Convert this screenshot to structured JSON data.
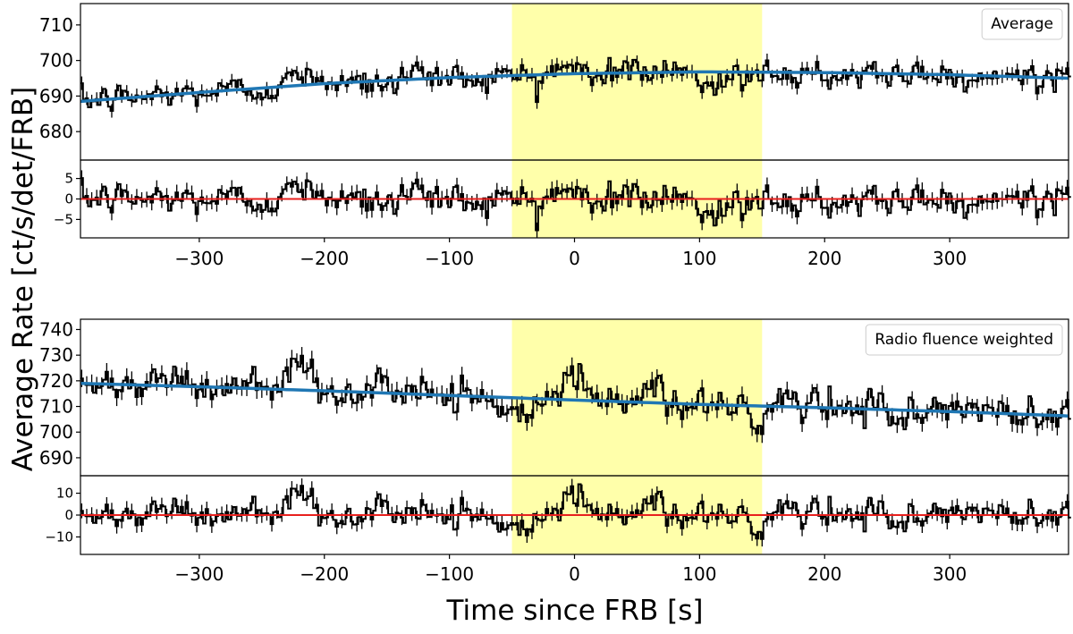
{
  "figure": {
    "ylabel": "Average Rate [ct/s/det/FRB]",
    "xlabel": "Time since FRB [s]"
  },
  "chart_data": [
    {
      "type": "line",
      "panel": "top",
      "legend": "Average",
      "legend_position": "top-right",
      "xlim": [
        -395,
        395
      ],
      "ylim": [
        672,
        716
      ],
      "xticks": [
        -300,
        -200,
        -100,
        0,
        100,
        200,
        300
      ],
      "yticks": [
        680,
        690,
        700,
        710
      ],
      "xtick_labels": [
        "−300",
        "−200",
        "−100",
        "0",
        "100",
        "200",
        "300"
      ],
      "ytick_labels": [
        "680",
        "690",
        "700",
        "710"
      ],
      "highlight_span": [
        -50,
        150
      ],
      "bin_width": 2,
      "noise_sigma": 2.3,
      "errorbar": 1.9,
      "fit": {
        "x": [
          -395,
          -300,
          -200,
          -100,
          0,
          100,
          200,
          300,
          395
        ],
        "y": [
          688.5,
          691.0,
          693.5,
          695.2,
          696.3,
          696.8,
          696.6,
          696.0,
          695.0
        ]
      },
      "features": [
        {
          "x": [
            -228,
            -210
          ],
          "delta": 5
        },
        {
          "x": [
            -130,
            -100
          ],
          "delta": 2
        },
        {
          "x": [
            -20,
            10
          ],
          "delta": 2.5
        },
        {
          "x": [
            95,
            125
          ],
          "delta": -3
        },
        {
          "x": [
            130,
            150
          ],
          "delta": -1.5
        },
        {
          "x": [
            345,
            360
          ],
          "delta": 2.5
        }
      ],
      "residuals": {
        "ylim": [
          -9.5,
          9.5
        ],
        "yticks": [
          -5,
          0,
          5
        ],
        "ytick_labels": [
          "−5",
          "0",
          "5"
        ],
        "zero_line": 0
      }
    },
    {
      "type": "line",
      "panel": "bottom",
      "legend": "Radio fluence weighted",
      "legend_position": "top-right",
      "xlim": [
        -395,
        395
      ],
      "ylim": [
        683,
        744
      ],
      "xticks": [
        -300,
        -200,
        -100,
        0,
        100,
        200,
        300
      ],
      "yticks": [
        690,
        700,
        710,
        720,
        730,
        740
      ],
      "xtick_labels": [
        "−300",
        "−200",
        "−100",
        "0",
        "100",
        "200",
        "300"
      ],
      "ytick_labels": [
        "690",
        "700",
        "710",
        "720",
        "730",
        "740"
      ],
      "highlight_span": [
        -50,
        150
      ],
      "bin_width": 2,
      "noise_sigma": 4.0,
      "errorbar": 3.4,
      "fit": {
        "x": [
          -395,
          -300,
          -200,
          -100,
          0,
          100,
          200,
          300,
          395
        ],
        "y": [
          719.0,
          717.7,
          716.1,
          714.3,
          712.5,
          710.8,
          709.5,
          708.0,
          706.3
        ]
      },
      "features": [
        {
          "x": [
            -228,
            -210
          ],
          "delta": 8
        },
        {
          "x": [
            -340,
            -320
          ],
          "delta": 5
        },
        {
          "x": [
            -50,
            -35
          ],
          "delta": -8
        },
        {
          "x": [
            -10,
            5
          ],
          "delta": 7
        },
        {
          "x": [
            55,
            70
          ],
          "delta": 9
        },
        {
          "x": [
            140,
            150
          ],
          "delta": -10
        }
      ],
      "residuals": {
        "ylim": [
          -18,
          18
        ],
        "yticks": [
          -10,
          0,
          10
        ],
        "ytick_labels": [
          "−10",
          "0",
          "10"
        ],
        "zero_line": 0
      }
    }
  ],
  "colors": {
    "data": "#000000",
    "fit": "#1f77b4",
    "zero_line": "#e8201e",
    "highlight": "#ffffaa",
    "axes": "#000000"
  }
}
